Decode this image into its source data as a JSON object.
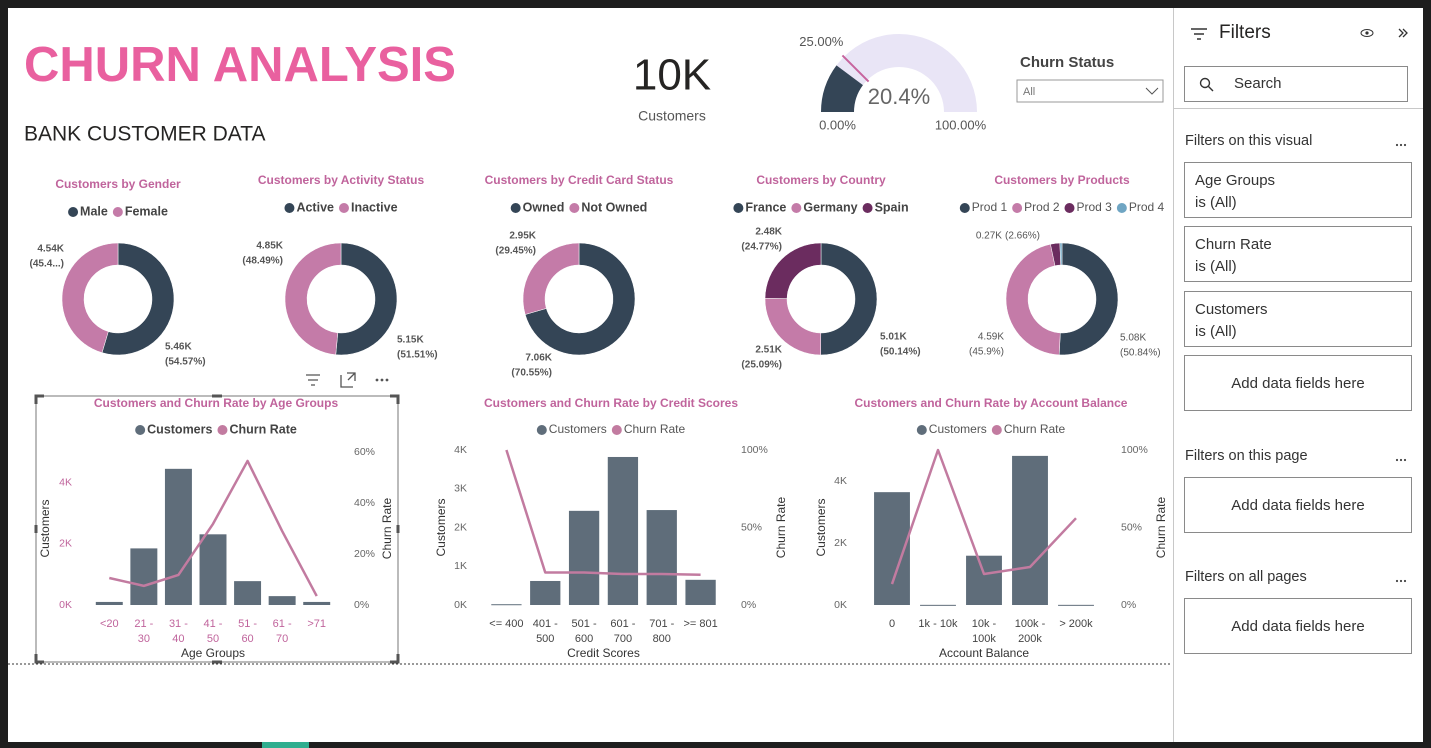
{
  "header": {
    "title": "CHURN ANALYSIS",
    "subtitle": "BANK CUSTOMER DATA"
  },
  "kpi": {
    "value": "10K",
    "label": "Customers"
  },
  "slicer": {
    "title": "Churn Status",
    "value": "All"
  },
  "filters_pane": {
    "title": "Filters",
    "search": "Search",
    "sections": [
      {
        "title": "Filters on this visual",
        "cards": [
          {
            "field": "Age Groups",
            "state": "is (All)"
          },
          {
            "field": "Churn Rate",
            "state": "is (All)"
          },
          {
            "field": "Customers",
            "state": "is (All)"
          }
        ],
        "add": "Add data fields here"
      },
      {
        "title": "Filters on this page",
        "add": "Add data fields here"
      },
      {
        "title": "Filters on all pages",
        "add": "Add data fields here"
      }
    ]
  },
  "chart_data": [
    {
      "type": "gauge",
      "values": [
        20.4
      ],
      "value_labels": [
        "20.4%"
      ],
      "ylim": [
        0,
        100
      ],
      "yticks": [
        {
          "value": 0,
          "label": "0.00%"
        },
        {
          "value": 100,
          "label": "100.00%"
        }
      ],
      "target": {
        "value": 25,
        "label": "25.00%"
      },
      "colors": {
        "fill": "#344556",
        "track": "#e9e5f6",
        "target": "#c7649e"
      }
    },
    {
      "type": "donut",
      "title": "Customers by Gender",
      "categories": [
        "Male",
        "Female"
      ],
      "values": [
        5460,
        4540
      ],
      "value_labels": [
        "5.46K",
        "4.54K"
      ],
      "share_labels": [
        "(54.57%)",
        "(45.4...)"
      ],
      "colors": [
        "#344556",
        "#c47ba8"
      ]
    },
    {
      "type": "donut",
      "title": "Customers by Activity Status",
      "categories": [
        "Active",
        "Inactive"
      ],
      "values": [
        5150,
        4850
      ],
      "value_labels": [
        "5.15K",
        "4.85K"
      ],
      "share_labels": [
        "(51.51%)",
        "(48.49%)"
      ],
      "colors": [
        "#344556",
        "#c47ba8"
      ]
    },
    {
      "type": "donut",
      "title": "Customers by Credit Card Status",
      "categories": [
        "Owned",
        "Not Owned"
      ],
      "values": [
        7060,
        2950
      ],
      "value_labels": [
        "7.06K",
        "2.95K"
      ],
      "share_labels": [
        "(70.55%)",
        "(29.45%)"
      ],
      "colors": [
        "#344556",
        "#c47ba8"
      ]
    },
    {
      "type": "donut",
      "title": "Customers by Country",
      "categories": [
        "France",
        "Germany",
        "Spain"
      ],
      "values": [
        5010,
        2510,
        2480
      ],
      "value_labels": [
        "5.01K",
        "2.51K",
        "2.48K"
      ],
      "share_labels": [
        "(50.14%)",
        "(25.09%)",
        "(24.77%)"
      ],
      "colors": [
        "#344556",
        "#c47ba8",
        "#6b2c5f"
      ]
    },
    {
      "type": "donut",
      "title": "Customers by Products",
      "categories": [
        "Prod 1",
        "Prod 2",
        "Prod 3",
        "Prod 4"
      ],
      "values": [
        5080,
        4590,
        270,
        60
      ],
      "value_labels": [
        "5.08K",
        "4.59K",
        "0.27K",
        null
      ],
      "share_labels": [
        "(50.84%)",
        "(45.9%)",
        "(2.66%)",
        null
      ],
      "colors": [
        "#344556",
        "#c47ba8",
        "#6b2c5f",
        "#6fa5c3"
      ]
    },
    {
      "type": "combo",
      "title": "Customers and Churn Rate by Age Groups",
      "categories": [
        "<20",
        "21 - 30",
        "31 - 40",
        "41 - 50",
        "51 - 60",
        "61 - 70",
        ">71"
      ],
      "x_label": "Age Groups",
      "y_label": "Customers",
      "y2_label": "Churn Rate",
      "ylim": [
        0,
        5000
      ],
      "yticks": [
        {
          "value": 0,
          "label": "0K"
        },
        {
          "value": 2000,
          "label": "2K"
        },
        {
          "value": 4000,
          "label": "4K"
        }
      ],
      "y2lim": [
        0,
        60
      ],
      "y2ticks": [
        {
          "value": 0,
          "label": "0%"
        },
        {
          "value": 20,
          "label": "20%"
        },
        {
          "value": 40,
          "label": "40%"
        },
        {
          "value": 60,
          "label": "60%"
        }
      ],
      "series": [
        {
          "name": "Customers",
          "type": "bar",
          "color": "#5f6d7a",
          "values": [
            100,
            1850,
            4450,
            2310,
            780,
            290,
            100
          ]
        },
        {
          "name": "Churn Rate",
          "type": "line",
          "axis": "y2",
          "color": "#c27ba0",
          "values": [
            10.6,
            7.5,
            11.8,
            31.8,
            56.5,
            29,
            3.5
          ]
        }
      ]
    },
    {
      "type": "combo",
      "title": "Customers and Churn Rate by Credit Scores",
      "categories": [
        "<= 400",
        "401 - 500",
        "501 - 600",
        "601 - 700",
        "701 - 800",
        ">= 801"
      ],
      "x_label": "Credit Scores",
      "y_label": "Customers",
      "y2_label": "Churn Rate",
      "ylim": [
        0,
        4000
      ],
      "yticks": [
        {
          "value": 0,
          "label": "0K"
        },
        {
          "value": 1000,
          "label": "1K"
        },
        {
          "value": 2000,
          "label": "2K"
        },
        {
          "value": 3000,
          "label": "3K"
        },
        {
          "value": 4000,
          "label": "4K"
        }
      ],
      "y2lim": [
        0,
        100
      ],
      "y2ticks": [
        {
          "value": 0,
          "label": "0%"
        },
        {
          "value": 50,
          "label": "50%"
        },
        {
          "value": 100,
          "label": "100%"
        }
      ],
      "series": [
        {
          "name": "Customers",
          "type": "bar",
          "color": "#5f6d7a",
          "values": [
            20,
            620,
            2430,
            3820,
            2450,
            650
          ]
        },
        {
          "name": "Churn Rate",
          "type": "line",
          "axis": "y2",
          "color": "#c27ba0",
          "values": [
            100,
            21,
            21,
            20,
            20,
            19.5
          ]
        }
      ]
    },
    {
      "type": "combo",
      "title": "Customers and Churn Rate by Account Balance",
      "categories": [
        "0",
        "1k - 10k",
        "10k - 100k",
        "100k - 200k",
        "> 200k"
      ],
      "x_label": "Account Balance",
      "y_label": "Customers",
      "y2_label": "Churn Rate",
      "ylim": [
        0,
        5000
      ],
      "yticks": [
        {
          "value": 0,
          "label": "0K"
        },
        {
          "value": 2000,
          "label": "2K"
        },
        {
          "value": 4000,
          "label": "4K"
        }
      ],
      "y2lim": [
        0,
        100
      ],
      "y2ticks": [
        {
          "value": 0,
          "label": "0%"
        },
        {
          "value": 50,
          "label": "50%"
        },
        {
          "value": 100,
          "label": "100%"
        }
      ],
      "series": [
        {
          "name": "Customers",
          "type": "bar",
          "color": "#5f6d7a",
          "values": [
            3640,
            5,
            1590,
            4810,
            5
          ]
        },
        {
          "name": "Churn Rate",
          "type": "line",
          "axis": "y2",
          "color": "#c27ba0",
          "values": [
            13.5,
            100,
            20,
            24.5,
            56
          ]
        }
      ]
    }
  ]
}
